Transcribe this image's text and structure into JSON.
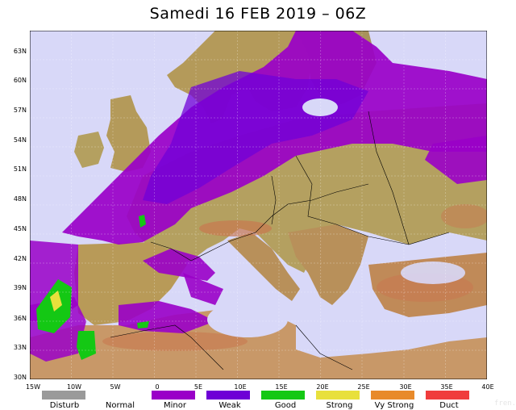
{
  "title": "Samedi 16 FEB 2019 – 06Z",
  "watermark": "fren.org",
  "lat_labels": [
    "63N",
    "60N",
    "57N",
    "54N",
    "51N",
    "48N",
    "45N",
    "42N",
    "39N",
    "36N",
    "33N",
    "30N"
  ],
  "lon_labels": [
    "15W",
    "10W",
    "5W",
    "0",
    "5E",
    "10E",
    "15E",
    "20E",
    "25E",
    "30E",
    "35E",
    "40E"
  ],
  "legend": [
    {
      "label": "Disturb",
      "color": "#9a9a9a"
    },
    {
      "label": "Normal",
      "color": "#ffffff"
    },
    {
      "label": "Minor",
      "color": "#9a00c8"
    },
    {
      "label": "Weak",
      "color": "#6e00d6"
    },
    {
      "label": "Good",
      "color": "#14c814"
    },
    {
      "label": "Strong",
      "color": "#e8e03c"
    },
    {
      "label": "Vy Strong",
      "color": "#e88a2a"
    },
    {
      "label": "Duct",
      "color": "#f03c3c"
    }
  ],
  "colors": {
    "sea": "#d8d8f8",
    "land": "#b4a060",
    "highland": "#c87850",
    "minor": "#9a00c8",
    "weak": "#7800d8"
  }
}
